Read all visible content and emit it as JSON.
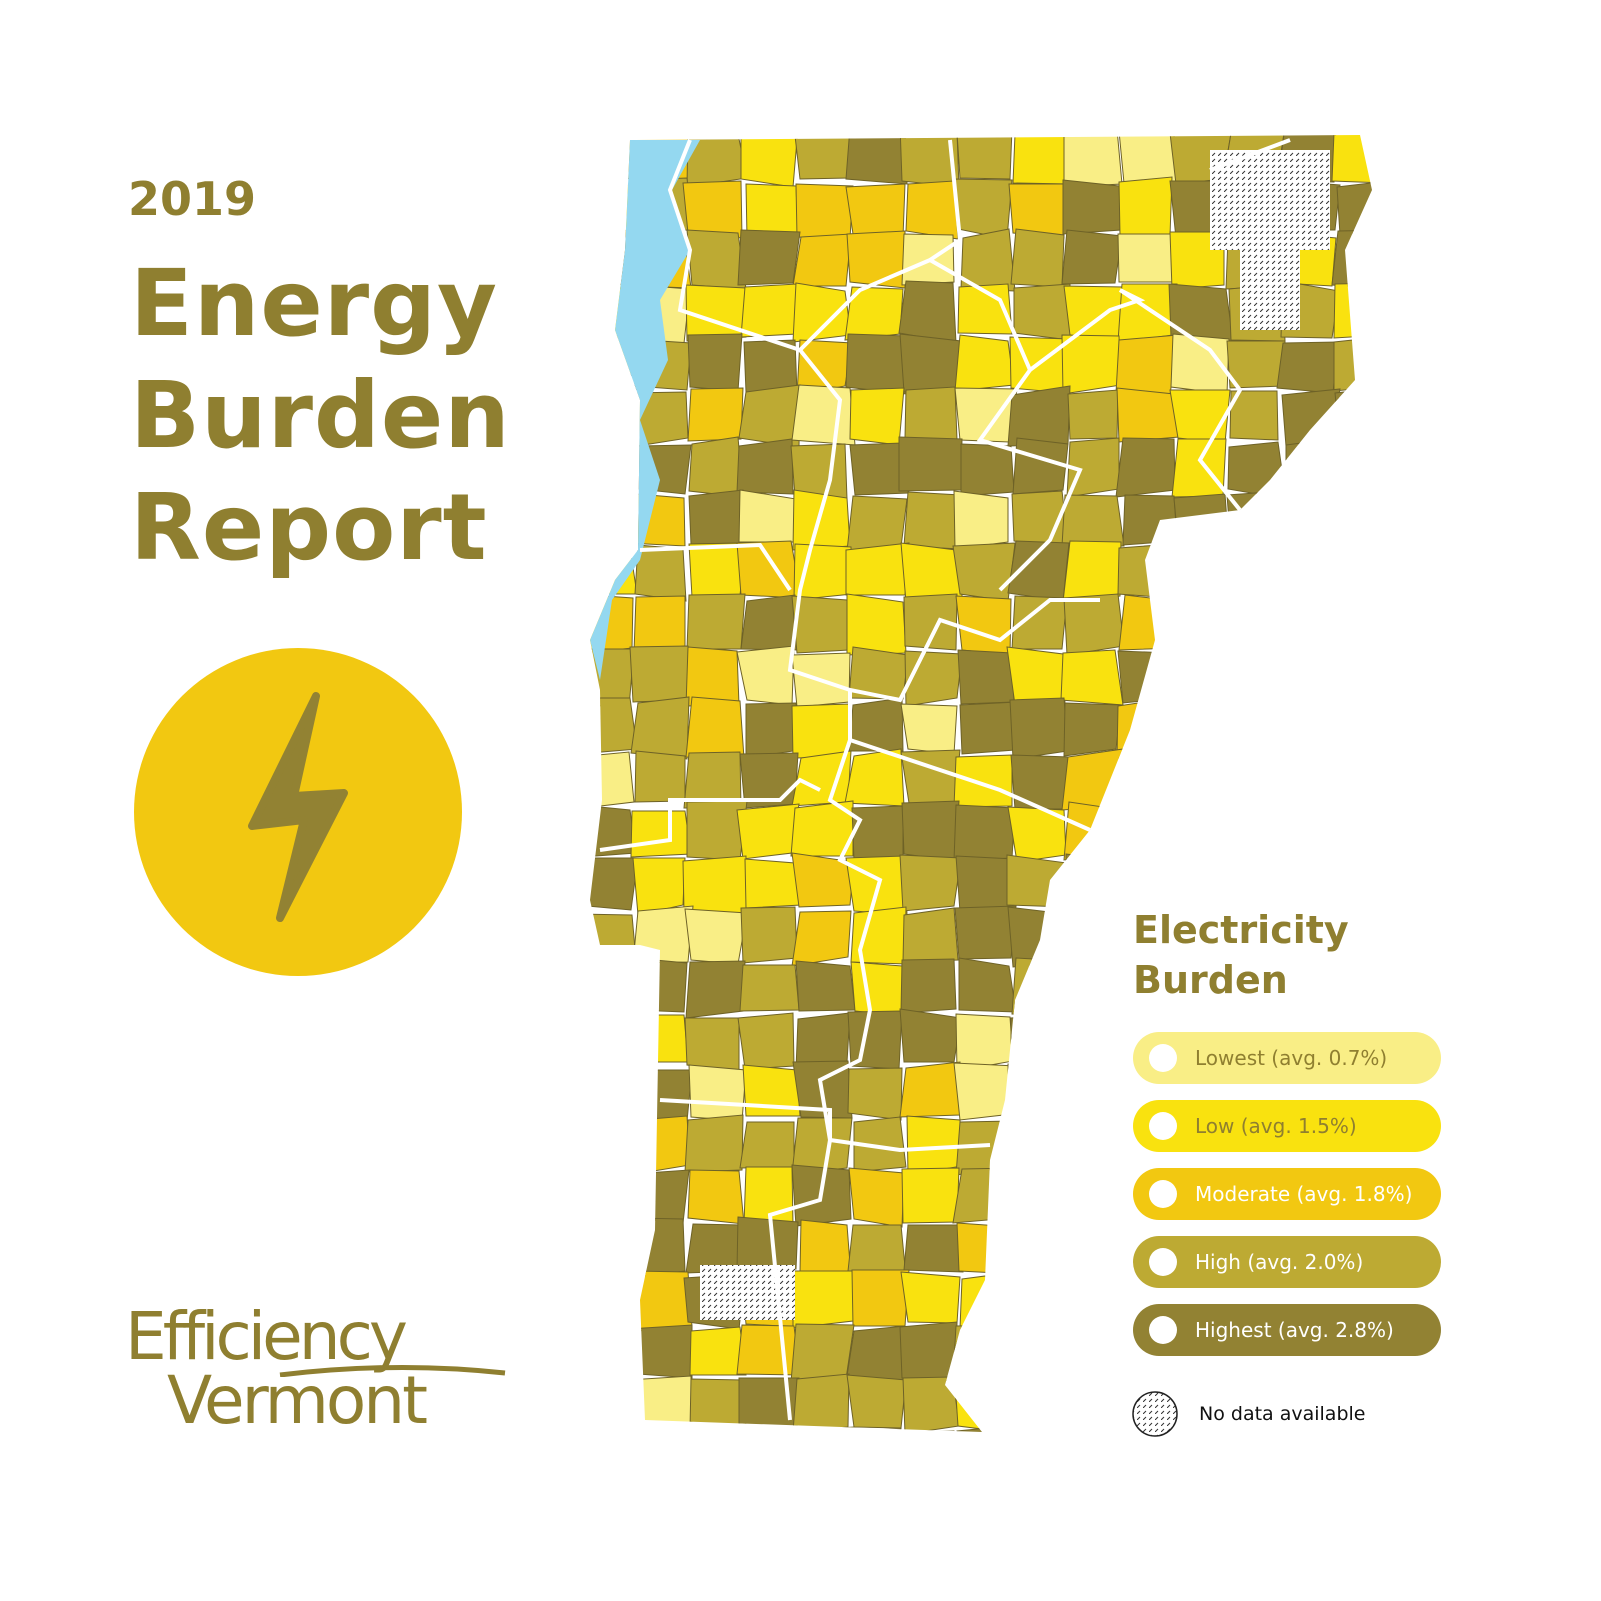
{
  "header": {
    "year": "2019",
    "title_lines": [
      "Energy",
      "Burden",
      "Report"
    ]
  },
  "icon": "lightning-bolt-icon",
  "logo": {
    "line1": "Efficiency",
    "line2": "Vermont"
  },
  "legend": {
    "title_lines": [
      "Electricity",
      "Burden"
    ],
    "items": [
      {
        "label": "Lowest (avg. 0.7%)",
        "color": "#f9ee86",
        "text_color": "#8f7f30"
      },
      {
        "label": "Low (avg. 1.5%)",
        "color": "#f9e20f",
        "text_color": "#8f7f30"
      },
      {
        "label": "Moderate (avg. 1.8%)",
        "color": "#f2c811",
        "text_color": "#ffffff"
      },
      {
        "label": "High (avg. 2.0%)",
        "color": "#bdaa33",
        "text_color": "#ffffff"
      },
      {
        "label": "Highest (avg. 2.8%)",
        "color": "#928233",
        "text_color": "#ffffff"
      }
    ],
    "no_data_label": "No data available"
  },
  "colors": {
    "brand": "#8f7f30",
    "water": "#94d8f0",
    "borders": "#ffffff"
  }
}
